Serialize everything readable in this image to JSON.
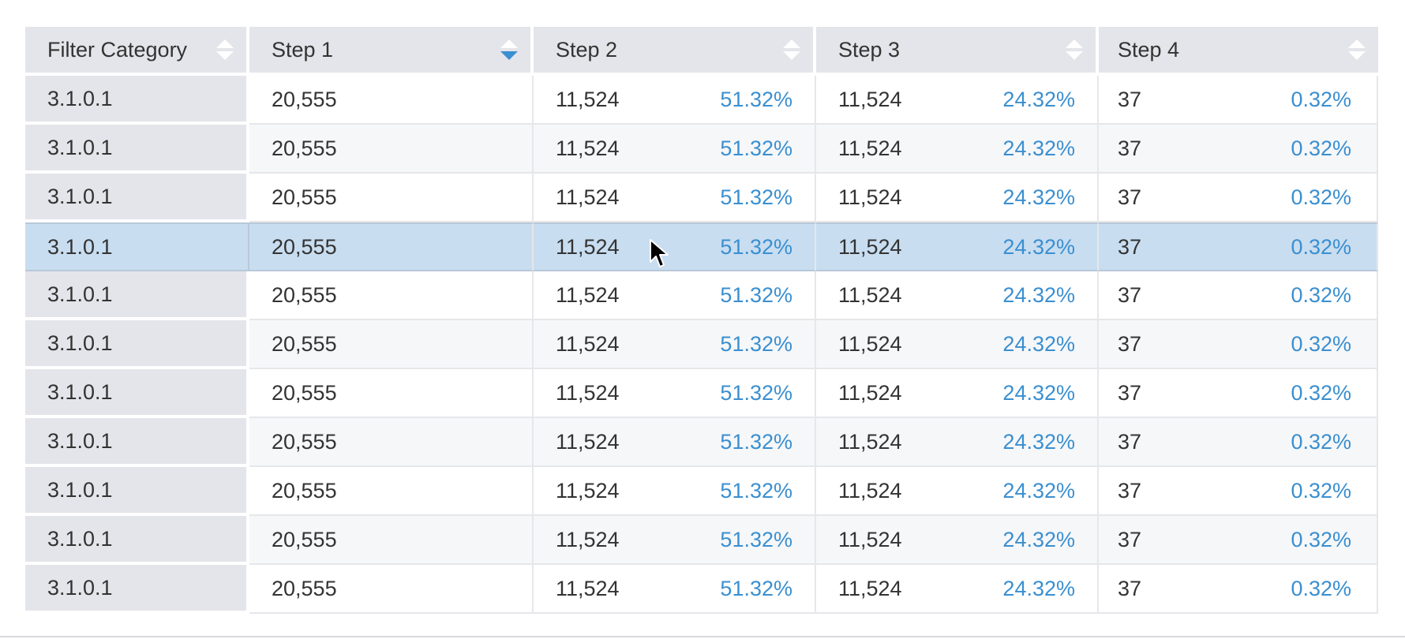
{
  "table": {
    "headers": [
      "Filter Category",
      "Step 1",
      "Step 2",
      "Step 3",
      "Step 4"
    ],
    "sort_icon": "sort-arrows-icon",
    "active_sort_column": "Step 1",
    "active_sort_direction": "descending",
    "selected_row_index": 3,
    "rows": [
      {
        "category": "3.1.0.1",
        "step1": "20,555",
        "step2": "11,524",
        "step2_pct": "51.32%",
        "step3": "11,524",
        "step3_pct": "24.32%",
        "step4": "37",
        "step4_pct": "0.32%"
      },
      {
        "category": "3.1.0.1",
        "step1": "20,555",
        "step2": "11,524",
        "step2_pct": "51.32%",
        "step3": "11,524",
        "step3_pct": "24.32%",
        "step4": "37",
        "step4_pct": "0.32%"
      },
      {
        "category": "3.1.0.1",
        "step1": "20,555",
        "step2": "11,524",
        "step2_pct": "51.32%",
        "step3": "11,524",
        "step3_pct": "24.32%",
        "step4": "37",
        "step4_pct": "0.32%"
      },
      {
        "category": "3.1.0.1",
        "step1": "20,555",
        "step2": "11,524",
        "step2_pct": "51.32%",
        "step3": "11,524",
        "step3_pct": "24.32%",
        "step4": "37",
        "step4_pct": "0.32%"
      },
      {
        "category": "3.1.0.1",
        "step1": "20,555",
        "step2": "11,524",
        "step2_pct": "51.32%",
        "step3": "11,524",
        "step3_pct": "24.32%",
        "step4": "37",
        "step4_pct": "0.32%"
      },
      {
        "category": "3.1.0.1",
        "step1": "20,555",
        "step2": "11,524",
        "step2_pct": "51.32%",
        "step3": "11,524",
        "step3_pct": "24.32%",
        "step4": "37",
        "step4_pct": "0.32%"
      },
      {
        "category": "3.1.0.1",
        "step1": "20,555",
        "step2": "11,524",
        "step2_pct": "51.32%",
        "step3": "11,524",
        "step3_pct": "24.32%",
        "step4": "37",
        "step4_pct": "0.32%"
      },
      {
        "category": "3.1.0.1",
        "step1": "20,555",
        "step2": "11,524",
        "step2_pct": "51.32%",
        "step3": "11,524",
        "step3_pct": "24.32%",
        "step4": "37",
        "step4_pct": "0.32%"
      },
      {
        "category": "3.1.0.1",
        "step1": "20,555",
        "step2": "11,524",
        "step2_pct": "51.32%",
        "step3": "11,524",
        "step3_pct": "24.32%",
        "step4": "37",
        "step4_pct": "0.32%"
      },
      {
        "category": "3.1.0.1",
        "step1": "20,555",
        "step2": "11,524",
        "step2_pct": "51.32%",
        "step3": "11,524",
        "step3_pct": "24.32%",
        "step4": "37",
        "step4_pct": "0.32%"
      },
      {
        "category": "3.1.0.1",
        "step1": "20,555",
        "step2": "11,524",
        "step2_pct": "51.32%",
        "step3": "11,524",
        "step3_pct": "24.32%",
        "step4": "37",
        "step4_pct": "0.32%"
      }
    ]
  },
  "colors": {
    "accent": "#3a8fd0",
    "header_bg": "#e4e5ea",
    "selected_row_bg": "#c8ddf0"
  },
  "cursor_icon": "mouse-pointer-icon"
}
